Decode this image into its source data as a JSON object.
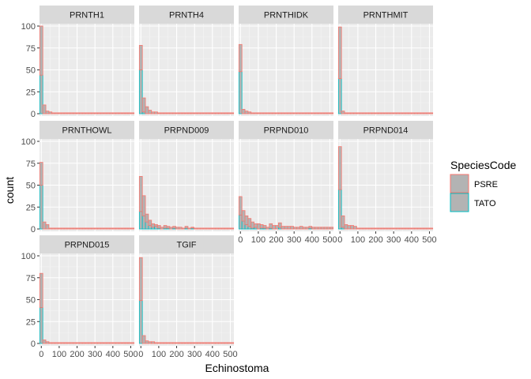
{
  "chart_data": {
    "type": "bar",
    "subtype": "faceted-stacked-histogram",
    "xlabel": "Echinostoma",
    "ylabel": "count",
    "xlim": [
      -10,
      520
    ],
    "ylim": [
      0,
      100
    ],
    "x_ticks": [
      0,
      100,
      200,
      300,
      400,
      500
    ],
    "y_ticks": [
      0,
      25,
      50,
      75,
      100
    ],
    "bin_width": 17,
    "grid": true,
    "legend": {
      "title": "SpeciesCode",
      "position": "right",
      "entries": [
        {
          "name": "PSRE",
          "color": "#F8766D"
        },
        {
          "name": "TATO",
          "color": "#00BFC4"
        }
      ]
    },
    "bin_centers": [
      0,
      17,
      34,
      51,
      68,
      85,
      102,
      119,
      136,
      153,
      170,
      187,
      204,
      221,
      238,
      255,
      272,
      289,
      306,
      323,
      340,
      357,
      374,
      391,
      408,
      425,
      442,
      459,
      476,
      493,
      510
    ],
    "facets": [
      {
        "name": "PRNTH1",
        "series": [
          {
            "name": "TATO",
            "values": [
              44,
              0,
              0,
              0,
              0,
              0,
              0,
              0,
              0,
              0,
              0,
              0,
              0,
              0,
              0,
              0,
              0,
              0,
              0,
              0,
              0,
              0,
              0,
              0,
              0,
              0,
              0,
              0,
              0,
              0,
              0
            ]
          },
          {
            "name": "PSRE",
            "values": [
              56,
              10,
              3,
              2,
              1,
              1,
              1,
              1,
              1,
              1,
              1,
              1,
              1,
              1,
              1,
              1,
              1,
              1,
              1,
              1,
              1,
              1,
              1,
              1,
              1,
              1,
              1,
              1,
              1,
              1,
              1
            ]
          }
        ]
      },
      {
        "name": "PRNTH4",
        "series": [
          {
            "name": "TATO",
            "values": [
              50,
              2,
              0,
              0,
              0,
              0,
              0,
              0,
              0,
              0,
              0,
              0,
              0,
              0,
              0,
              0,
              0,
              0,
              0,
              0,
              0,
              0,
              0,
              0,
              0,
              0,
              0,
              0,
              0,
              0,
              0
            ]
          },
          {
            "name": "PSRE",
            "values": [
              28,
              16,
              8,
              4,
              2,
              2,
              1,
              1,
              1,
              1,
              1,
              1,
              1,
              1,
              1,
              1,
              1,
              1,
              1,
              1,
              1,
              1,
              1,
              1,
              1,
              1,
              1,
              1,
              1,
              1,
              1
            ]
          }
        ]
      },
      {
        "name": "PRNTHIDK",
        "series": [
          {
            "name": "TATO",
            "values": [
              48,
              0,
              0,
              0,
              0,
              0,
              0,
              0,
              0,
              0,
              0,
              0,
              0,
              0,
              0,
              0,
              0,
              0,
              0,
              0,
              0,
              0,
              0,
              0,
              0,
              0,
              0,
              0,
              0,
              0,
              0
            ]
          },
          {
            "name": "PSRE",
            "values": [
              31,
              5,
              3,
              2,
              1,
              1,
              1,
              1,
              1,
              1,
              1,
              1,
              1,
              1,
              1,
              1,
              1,
              1,
              1,
              1,
              1,
              1,
              1,
              1,
              1,
              1,
              1,
              1,
              1,
              1,
              1
            ]
          }
        ]
      },
      {
        "name": "PRNTHMIT",
        "series": [
          {
            "name": "TATO",
            "values": [
              40,
              0,
              0,
              0,
              0,
              0,
              0,
              0,
              0,
              0,
              0,
              0,
              0,
              0,
              0,
              0,
              0,
              0,
              0,
              0,
              0,
              0,
              0,
              0,
              0,
              0,
              0,
              0,
              0,
              0,
              0
            ]
          },
          {
            "name": "PSRE",
            "values": [
              59,
              3,
              1,
              1,
              1,
              1,
              1,
              1,
              1,
              1,
              1,
              1,
              1,
              1,
              1,
              1,
              1,
              1,
              1,
              1,
              1,
              1,
              1,
              1,
              1,
              1,
              1,
              1,
              1,
              1,
              1
            ]
          }
        ]
      },
      {
        "name": "PRNTHOWL",
        "series": [
          {
            "name": "TATO",
            "values": [
              50,
              0,
              0,
              0,
              0,
              0,
              0,
              0,
              0,
              0,
              0,
              0,
              0,
              0,
              0,
              0,
              0,
              0,
              0,
              0,
              0,
              0,
              0,
              0,
              0,
              0,
              0,
              0,
              0,
              0,
              0
            ]
          },
          {
            "name": "PSRE",
            "values": [
              26,
              8,
              5,
              1,
              1,
              1,
              1,
              1,
              1,
              1,
              1,
              1,
              1,
              1,
              1,
              1,
              1,
              1,
              1,
              1,
              1,
              1,
              1,
              1,
              1,
              1,
              1,
              1,
              1,
              1,
              1
            ]
          }
        ]
      },
      {
        "name": "PRPND009",
        "series": [
          {
            "name": "TATO",
            "values": [
              20,
              15,
              8,
              4,
              2,
              3,
              1,
              0,
              1,
              1,
              0,
              1,
              0,
              0,
              0,
              1,
              0,
              1,
              0,
              0,
              0,
              0,
              0,
              0,
              0,
              0,
              0,
              0,
              0,
              0,
              0
            ]
          },
          {
            "name": "PSRE",
            "values": [
              40,
              23,
              9,
              6,
              4,
              2,
              3,
              2,
              3,
              2,
              2,
              2,
              2,
              2,
              1,
              2,
              1,
              1,
              1,
              1,
              1,
              1,
              1,
              1,
              1,
              1,
              1,
              1,
              1,
              1,
              1
            ]
          }
        ]
      },
      {
        "name": "PRPND010",
        "series": [
          {
            "name": "TATO",
            "values": [
              16,
              9,
              5,
              3,
              1,
              2,
              0,
              1,
              1,
              0,
              1,
              0,
              0,
              2,
              0,
              0,
              0,
              0,
              0,
              0,
              0,
              0,
              0,
              1,
              0,
              0,
              0,
              0,
              0,
              0,
              0
            ]
          },
          {
            "name": "PSRE",
            "values": [
              21,
              12,
              10,
              9,
              7,
              4,
              6,
              4,
              3,
              2,
              5,
              4,
              4,
              5,
              3,
              3,
              3,
              3,
              2,
              2,
              3,
              2,
              2,
              2,
              2,
              2,
              2,
              2,
              2,
              2,
              2
            ]
          }
        ]
      },
      {
        "name": "PRPND014",
        "series": [
          {
            "name": "TATO",
            "values": [
              45,
              2,
              0,
              0,
              0,
              0,
              0,
              0,
              0,
              0,
              0,
              0,
              0,
              0,
              0,
              0,
              0,
              0,
              0,
              0,
              0,
              0,
              0,
              0,
              0,
              0,
              0,
              0,
              0,
              0,
              0
            ]
          },
          {
            "name": "PSRE",
            "values": [
              49,
              13,
              5,
              4,
              4,
              3,
              1,
              1,
              1,
              1,
              1,
              1,
              1,
              1,
              1,
              1,
              1,
              1,
              1,
              1,
              1,
              1,
              1,
              1,
              1,
              1,
              1,
              1,
              1,
              1,
              1
            ]
          }
        ]
      },
      {
        "name": "PRPND015",
        "series": [
          {
            "name": "TATO",
            "values": [
              41,
              0,
              0,
              0,
              0,
              0,
              0,
              0,
              0,
              0,
              0,
              0,
              0,
              0,
              0,
              0,
              0,
              0,
              0,
              0,
              0,
              0,
              0,
              0,
              0,
              0,
              0,
              0,
              0,
              0,
              0
            ]
          },
          {
            "name": "PSRE",
            "values": [
              39,
              4,
              2,
              1,
              1,
              1,
              1,
              1,
              1,
              1,
              1,
              1,
              1,
              1,
              1,
              1,
              1,
              1,
              1,
              1,
              1,
              1,
              1,
              1,
              1,
              1,
              1,
              1,
              1,
              1,
              1
            ]
          }
        ]
      },
      {
        "name": "TGIF",
        "series": [
          {
            "name": "TATO",
            "values": [
              49,
              0,
              0,
              0,
              0,
              0,
              0,
              0,
              0,
              0,
              0,
              0,
              0,
              0,
              0,
              0,
              0,
              0,
              0,
              0,
              0,
              0,
              0,
              0,
              0,
              0,
              0,
              0,
              0,
              0,
              0
            ]
          },
          {
            "name": "PSRE",
            "values": [
              49,
              9,
              3,
              2,
              2,
              1,
              1,
              1,
              1,
              1,
              1,
              1,
              1,
              1,
              1,
              1,
              1,
              1,
              1,
              1,
              1,
              1,
              1,
              1,
              1,
              1,
              1,
              1,
              1,
              1,
              1
            ]
          }
        ]
      }
    ]
  }
}
